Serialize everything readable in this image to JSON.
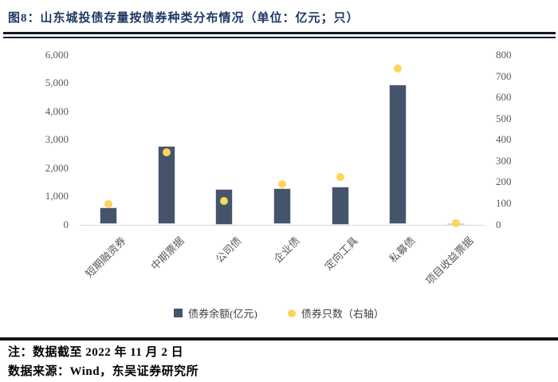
{
  "page": {
    "title": "图8：山东城投债存量按债券种类分布情况（单位：亿元；只）",
    "note1": "注：数据截至 2022 年 11 月 2 日",
    "note2": "数据来源：Wind，东吴证券研究所"
  },
  "colors": {
    "title_navy": "#1F3864",
    "bar": "#44546A",
    "dot": "#FFD45C",
    "axis_text": "#595959",
    "baseline": "#D9D9D9",
    "rule": "#131A2C"
  },
  "chart_data": {
    "type": "bar",
    "title": "山东城投债存量按债券种类分布情况（单位：亿元；只）",
    "categories": [
      "短期融资券",
      "中期票据",
      "公司债",
      "企业债",
      "定向工具",
      "私募债",
      "项目收益票据"
    ],
    "series": [
      {
        "name": "债券余额(亿元)",
        "type": "bar",
        "axis": "left",
        "values": [
          620,
          2780,
          1260,
          1280,
          1350,
          4960,
          30
        ]
      },
      {
        "name": "债券只数（右轴）",
        "type": "scatter",
        "axis": "right",
        "values": [
          95,
          340,
          110,
          190,
          225,
          735,
          5
        ]
      }
    ],
    "left_axis": {
      "min": 0,
      "max": 6000,
      "step": 1000,
      "ticks": [
        "0",
        "1,000",
        "2,000",
        "3,000",
        "4,000",
        "5,000",
        "6,000"
      ]
    },
    "right_axis": {
      "min": 0,
      "max": 800,
      "step": 100,
      "ticks": [
        "0",
        "100",
        "200",
        "300",
        "400",
        "500",
        "600",
        "700",
        "800"
      ]
    },
    "legend": [
      {
        "label": "债券余额(亿元)",
        "marker": "square"
      },
      {
        "label": "债券只数（右轴）",
        "marker": "circle"
      }
    ],
    "grid": false,
    "legend_position": "bottom-center"
  }
}
